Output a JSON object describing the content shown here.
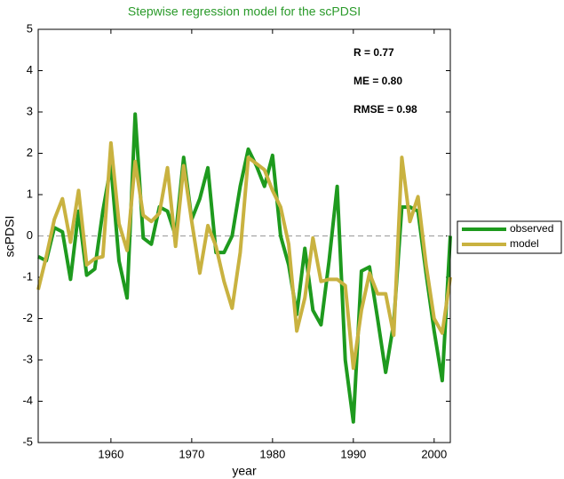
{
  "chart_data": {
    "type": "line",
    "title": "Stepwise regression model for the scPDSI",
    "xlabel": "year",
    "ylabel": "scPDSI",
    "x": [
      1951,
      1952,
      1953,
      1954,
      1955,
      1956,
      1957,
      1958,
      1959,
      1960,
      1961,
      1962,
      1963,
      1964,
      1965,
      1966,
      1967,
      1968,
      1969,
      1970,
      1971,
      1972,
      1973,
      1974,
      1975,
      1976,
      1977,
      1978,
      1979,
      1980,
      1981,
      1982,
      1983,
      1984,
      1985,
      1986,
      1987,
      1988,
      1989,
      1990,
      1991,
      1992,
      1993,
      1994,
      1995,
      1996,
      1997,
      1998,
      1999,
      2000,
      2001,
      2002
    ],
    "series": [
      {
        "name": "observed",
        "color": "#1e9a1e",
        "values": [
          -0.5,
          -0.6,
          0.2,
          0.1,
          -1.05,
          0.6,
          -0.95,
          -0.8,
          0.6,
          1.7,
          -0.6,
          -1.5,
          2.95,
          -0.05,
          -0.2,
          0.7,
          0.6,
          0.0,
          1.9,
          0.4,
          0.9,
          1.65,
          -0.4,
          -0.4,
          0.0,
          1.2,
          2.1,
          1.7,
          1.2,
          1.95,
          0.0,
          -0.7,
          -1.9,
          -0.3,
          -1.8,
          -2.15,
          -0.6,
          1.2,
          -3.0,
          -4.5,
          -0.85,
          -0.75,
          -2.0,
          -3.3,
          -2.1,
          0.7,
          0.7,
          0.6,
          -0.9,
          -2.3,
          -3.5,
          0.0
        ]
      },
      {
        "name": "model",
        "color": "#c9b240",
        "values": [
          -1.3,
          -0.5,
          0.4,
          0.9,
          -0.15,
          1.1,
          -0.7,
          -0.55,
          -0.5,
          2.25,
          0.3,
          -0.35,
          1.8,
          0.5,
          0.35,
          0.55,
          1.65,
          -0.25,
          1.7,
          0.35,
          -0.9,
          0.25,
          -0.25,
          -1.1,
          -1.75,
          -0.4,
          1.9,
          1.75,
          1.6,
          1.1,
          0.7,
          -0.2,
          -2.3,
          -1.5,
          -0.05,
          -1.1,
          -1.05,
          -1.05,
          -1.2,
          -3.2,
          -1.8,
          -0.9,
          -1.4,
          -1.4,
          -2.4,
          1.9,
          0.35,
          0.95,
          -0.7,
          -2.0,
          -2.35,
          -1.0
        ]
      }
    ],
    "annotations": [
      "R = 0.77",
      "ME = 0.80",
      "RMSE = 0.98"
    ],
    "reference_line": 0,
    "xlim": [
      1951,
      2002
    ],
    "xticks": [
      1960,
      1970,
      1980,
      1990,
      2000
    ],
    "ylim": [
      -5,
      5
    ],
    "yticks": [
      -5,
      -4,
      -3,
      -2,
      -1,
      0,
      1,
      2,
      3,
      4,
      5
    ],
    "legend": "outside-right"
  }
}
